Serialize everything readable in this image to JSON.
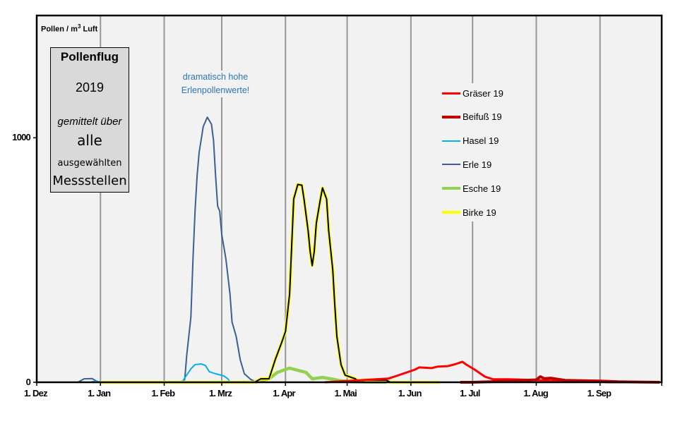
{
  "chart_data": {
    "type": "line",
    "ylabel_main": "Pollen / m",
    "ylabel_sup": "3",
    "ylabel_rest": " Luft",
    "ylim": [
      0,
      1500
    ],
    "yticks": [
      0,
      1000
    ],
    "xlim": [
      "2018-12-01",
      "2019-10-01"
    ],
    "xticks": [
      {
        "date": "2018-12-01",
        "label": "1. Dez"
      },
      {
        "date": "2019-01-01",
        "label": "1. Jan"
      },
      {
        "date": "2019-02-01",
        "label": "1. Feb"
      },
      {
        "date": "2019-03-01",
        "label": "1. Mrz"
      },
      {
        "date": "2019-04-01",
        "label": "1. Apr"
      },
      {
        "date": "2019-05-01",
        "label": "1. Mai"
      },
      {
        "date": "2019-06-01",
        "label": "1. Jun"
      },
      {
        "date": "2019-07-01",
        "label": "1. Jul"
      },
      {
        "date": "2019-08-01",
        "label": "1. Aug"
      },
      {
        "date": "2019-09-01",
        "label": "1. Sep"
      }
    ],
    "grid": "vertical monthly",
    "legend_position": "top-right",
    "series": [
      {
        "name": "Erle 19",
        "color": "#3A5F94",
        "points": [
          [
            "2018-12-01",
            0
          ],
          [
            "2018-12-21",
            0
          ],
          [
            "2018-12-24",
            14
          ],
          [
            "2018-12-28",
            15
          ],
          [
            "2018-12-31",
            0
          ],
          [
            "2019-02-10",
            0
          ],
          [
            "2019-02-11",
            12
          ],
          [
            "2019-02-12",
            113
          ],
          [
            "2019-02-14",
            266
          ],
          [
            "2019-02-15",
            506
          ],
          [
            "2019-02-16",
            700
          ],
          [
            "2019-02-17",
            844
          ],
          [
            "2019-02-18",
            940
          ],
          [
            "2019-02-20",
            1046
          ],
          [
            "2019-02-22",
            1084
          ],
          [
            "2019-02-24",
            1055
          ],
          [
            "2019-02-25",
            988
          ],
          [
            "2019-02-26",
            844
          ],
          [
            "2019-02-27",
            720
          ],
          [
            "2019-02-28",
            700
          ],
          [
            "2019-03-01",
            604
          ],
          [
            "2019-03-03",
            506
          ],
          [
            "2019-03-05",
            361
          ],
          [
            "2019-03-06",
            246
          ],
          [
            "2019-03-08",
            188
          ],
          [
            "2019-03-10",
            92
          ],
          [
            "2019-03-12",
            35
          ],
          [
            "2019-03-15",
            12
          ],
          [
            "2019-03-18",
            0
          ],
          [
            "2019-09-30",
            0
          ]
        ]
      },
      {
        "name": "Hasel 19",
        "color": "#00B0F0",
        "points": [
          [
            "2018-12-27",
            0
          ],
          [
            "2018-12-30",
            5
          ],
          [
            "2019-01-01",
            0
          ],
          [
            "2019-02-06",
            0
          ],
          [
            "2019-02-10",
            5
          ],
          [
            "2019-02-14",
            55
          ],
          [
            "2019-02-16",
            72
          ],
          [
            "2019-02-19",
            75
          ],
          [
            "2019-02-21",
            69
          ],
          [
            "2019-02-23",
            43
          ],
          [
            "2019-02-26",
            35
          ],
          [
            "2019-03-02",
            26
          ],
          [
            "2019-03-04",
            14
          ],
          [
            "2019-03-05",
            0
          ],
          [
            "2019-03-20",
            0
          ],
          [
            "2019-04-05",
            0
          ]
        ]
      },
      {
        "name": "Esche 19",
        "color": "#92D050",
        "points": [
          [
            "2019-03-17",
            0
          ],
          [
            "2019-03-24",
            14
          ],
          [
            "2019-03-28",
            40
          ],
          [
            "2019-03-31",
            49
          ],
          [
            "2019-04-03",
            58
          ],
          [
            "2019-04-07",
            49
          ],
          [
            "2019-04-11",
            40
          ],
          [
            "2019-04-14",
            14
          ],
          [
            "2019-04-19",
            20
          ],
          [
            "2019-04-23",
            14
          ],
          [
            "2019-04-28",
            6
          ],
          [
            "2019-05-03",
            2
          ],
          [
            "2019-05-20",
            0
          ]
        ]
      },
      {
        "name": "Birke 19",
        "color": "#FFFF00",
        "points": [
          [
            "2019-01-01",
            0
          ],
          [
            "2019-03-17",
            0
          ],
          [
            "2019-03-20",
            14
          ],
          [
            "2019-03-24",
            14
          ],
          [
            "2019-03-27",
            92
          ],
          [
            "2019-03-30",
            159
          ],
          [
            "2019-04-01",
            208
          ],
          [
            "2019-04-03",
            361
          ],
          [
            "2019-04-04",
            555
          ],
          [
            "2019-04-05",
            749
          ],
          [
            "2019-04-07",
            809
          ],
          [
            "2019-04-09",
            806
          ],
          [
            "2019-04-10",
            749
          ],
          [
            "2019-04-12",
            621
          ],
          [
            "2019-04-13",
            535
          ],
          [
            "2019-04-14",
            477
          ],
          [
            "2019-04-15",
            535
          ],
          [
            "2019-04-16",
            650
          ],
          [
            "2019-04-18",
            749
          ],
          [
            "2019-04-19",
            795
          ],
          [
            "2019-04-21",
            749
          ],
          [
            "2019-04-22",
            621
          ],
          [
            "2019-04-24",
            460
          ],
          [
            "2019-04-25",
            315
          ],
          [
            "2019-04-26",
            188
          ],
          [
            "2019-04-28",
            72
          ],
          [
            "2019-04-30",
            29
          ],
          [
            "2019-05-03",
            20
          ],
          [
            "2019-05-05",
            14
          ],
          [
            "2019-05-06",
            6
          ],
          [
            "2019-05-10",
            9
          ],
          [
            "2019-05-20",
            9
          ],
          [
            "2019-05-22",
            0
          ],
          [
            "2019-06-15",
            0
          ]
        ]
      },
      {
        "name": "Gräser 19",
        "color": "#FF0000",
        "points": [
          [
            "2019-04-20",
            0
          ],
          [
            "2019-05-15",
            12
          ],
          [
            "2019-05-21",
            15
          ],
          [
            "2019-05-25",
            26
          ],
          [
            "2019-05-30",
            40
          ],
          [
            "2019-06-03",
            52
          ],
          [
            "2019-06-05",
            61
          ],
          [
            "2019-06-11",
            58
          ],
          [
            "2019-06-14",
            64
          ],
          [
            "2019-06-19",
            66
          ],
          [
            "2019-06-23",
            75
          ],
          [
            "2019-06-26",
            84
          ],
          [
            "2019-06-28",
            72
          ],
          [
            "2019-07-02",
            52
          ],
          [
            "2019-07-07",
            23
          ],
          [
            "2019-07-11",
            12
          ],
          [
            "2019-07-19",
            12
          ],
          [
            "2019-07-31",
            9
          ],
          [
            "2019-08-08",
            6
          ],
          [
            "2019-08-31",
            3
          ],
          [
            "2019-09-05",
            0
          ],
          [
            "2019-09-30",
            0
          ]
        ]
      },
      {
        "name": "Beifuß 19",
        "color": "#C00000",
        "points": [
          [
            "2019-06-25",
            0
          ],
          [
            "2019-07-01",
            0
          ],
          [
            "2019-07-20",
            5
          ],
          [
            "2019-08-01",
            10
          ],
          [
            "2019-08-03",
            23
          ],
          [
            "2019-08-05",
            15
          ],
          [
            "2019-08-08",
            17
          ],
          [
            "2019-08-15",
            8
          ],
          [
            "2019-09-01",
            5
          ],
          [
            "2019-09-10",
            2
          ],
          [
            "2019-09-30",
            0
          ]
        ]
      }
    ]
  },
  "infobox": {
    "title": "Pollenflug",
    "year": "2019",
    "line1": "gemittelt über",
    "line2": "alle",
    "line3": "ausgewählten",
    "line4": "Messstellen"
  },
  "annotation": {
    "line1": "dramatisch hohe",
    "line2": "Erlenpollenwerte!",
    "color": "#2E75B6"
  },
  "legend": [
    {
      "label": "Gräser 19",
      "color": "#FF0000",
      "thickness": 3
    },
    {
      "label": "Beifuß 19",
      "color": "#C00000",
      "thickness": 4
    },
    {
      "label": "Hasel 19",
      "color": "#00B0F0",
      "thickness": 2
    },
    {
      "label": "Erle 19",
      "color": "#3A5F94",
      "thickness": 2
    },
    {
      "label": "Esche 19",
      "color": "#92D050",
      "thickness": 4
    },
    {
      "label": "Birke 19",
      "color": "#FFFF00",
      "thickness": 4
    }
  ]
}
